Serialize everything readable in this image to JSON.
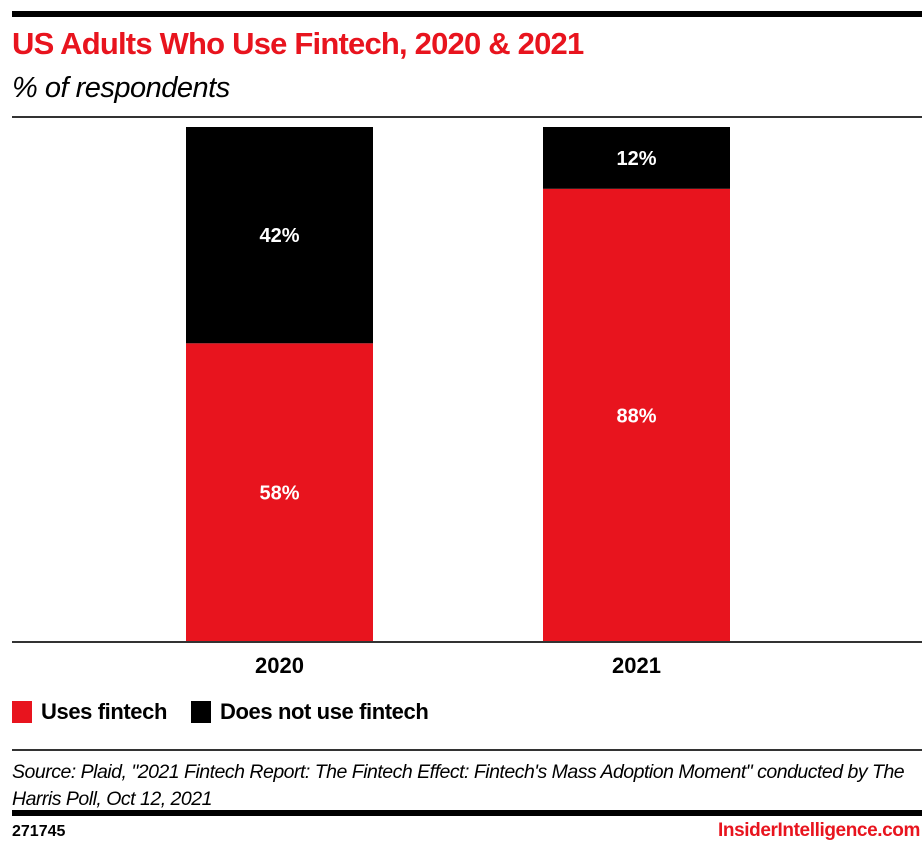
{
  "header": {
    "title": "US Adults Who Use Fintech, 2020 & 2021",
    "subtitle": "% of respondents"
  },
  "chart_data": {
    "type": "bar",
    "stacked": true,
    "title": "US Adults Who Use Fintech, 2020 & 2021",
    "subtitle": "% of respondents",
    "categories": [
      "2020",
      "2021"
    ],
    "series": [
      {
        "name": "Uses fintech",
        "color": "#e8141e",
        "values": [
          58,
          88
        ]
      },
      {
        "name": "Does not use fintech",
        "color": "#000000",
        "values": [
          42,
          12
        ]
      }
    ],
    "data_labels": [
      [
        "58%",
        "88%"
      ],
      [
        "42%",
        "12%"
      ]
    ],
    "xlabel": "",
    "ylabel": "",
    "ylim": [
      0,
      100
    ],
    "grid": false,
    "legend_position": "bottom-left"
  },
  "legend": {
    "items": [
      {
        "label": "Uses fintech",
        "color": "#e8141e"
      },
      {
        "label": "Does not use fintech",
        "color": "#000000"
      }
    ]
  },
  "footer": {
    "source": "Source: Plaid, \"2021 Fintech Report: The Fintech Effect: Fintech's Mass Adoption Moment\" conducted by The Harris Poll, Oct 12, 2021",
    "chart_id": "271745",
    "brand": "InsiderIntelligence.com"
  }
}
